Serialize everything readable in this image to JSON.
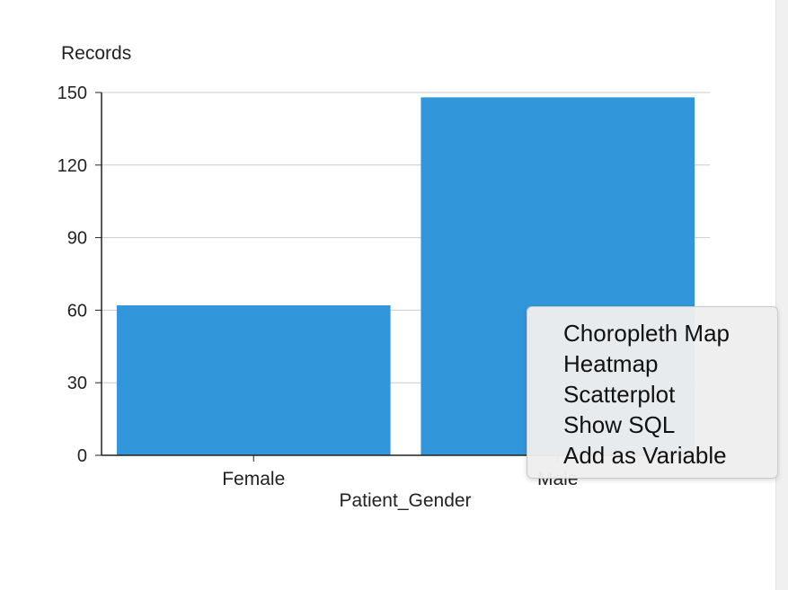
{
  "chart_data": {
    "type": "bar",
    "ylabel": "Records",
    "xlabel": "Patient_Gender",
    "categories": [
      "Female",
      "Male"
    ],
    "values": [
      62,
      148
    ],
    "ylim": [
      0,
      150
    ],
    "yticks": [
      0,
      30,
      60,
      90,
      120,
      150
    ],
    "grid": true,
    "bar_color": "#3296db"
  },
  "context_menu": {
    "items": [
      {
        "label": "Choropleth Map"
      },
      {
        "label": "Heatmap"
      },
      {
        "label": "Scatterplot"
      },
      {
        "label": "Show SQL"
      },
      {
        "label": "Add as Variable"
      }
    ]
  }
}
